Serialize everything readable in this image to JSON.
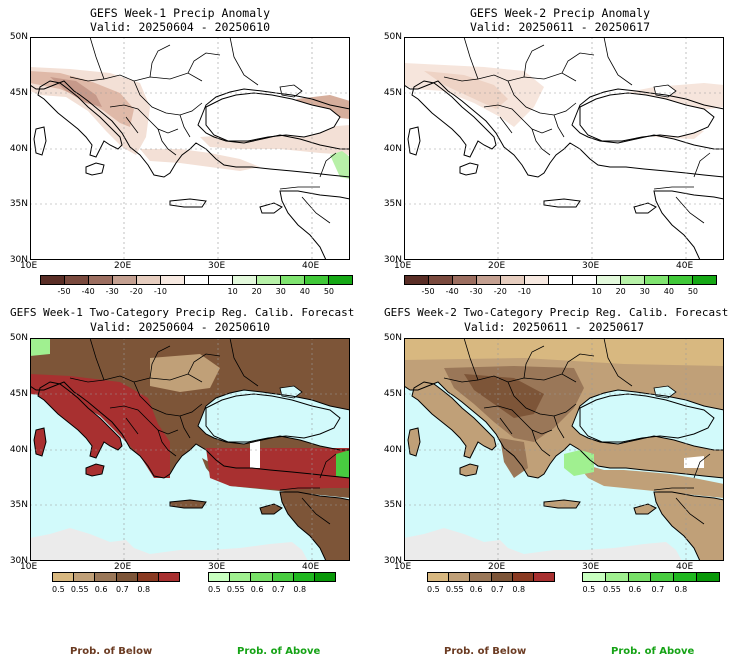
{
  "panels": [
    {
      "title": "GEFS Week-1 Precip Anomaly",
      "valid": "Valid: 20250604 - 20250610",
      "kind": "anomaly"
    },
    {
      "title": "GEFS Week-2 Precip Anomaly",
      "valid": "Valid: 20250611 - 20250617",
      "kind": "anomaly"
    },
    {
      "title": "GEFS Week-1 Two-Category Precip Reg. Calib. Forecast",
      "valid": "Valid: 20250604 - 20250610",
      "kind": "probability"
    },
    {
      "title": "GEFS Week-2 Two-Category Precip Reg. Calib. Forecast",
      "valid": "Valid: 20250611 - 20250617",
      "kind": "probability"
    }
  ],
  "axes": {
    "lat_labels": [
      "50N",
      "45N",
      "40N",
      "35N",
      "30N"
    ],
    "lon_labels": [
      "10E",
      "20E",
      "30E",
      "40E"
    ]
  },
  "anomaly_scale": {
    "ticks": [
      "-50",
      "-40",
      "-30",
      "-20",
      "-10",
      "10",
      "20",
      "30",
      "40",
      "50"
    ],
    "colors": [
      "#5a2e26",
      "#7a4a3e",
      "#9c6e60",
      "#c4a091",
      "#e6cdbf",
      "#f7e9e1",
      "#ffffff",
      "#ffffff",
      "#e3f9dc",
      "#b7f1a8",
      "#80e470",
      "#40c838",
      "#15a815"
    ]
  },
  "prob_scale_below": {
    "ticks": [
      "0.5",
      "0.55",
      "0.6",
      "0.7",
      "0.8"
    ],
    "colors": [
      "#d8b880",
      "#c0a078",
      "#9a7758",
      "#7d5538",
      "#8a3a22",
      "#a83030"
    ]
  },
  "prob_scale_above": {
    "ticks": [
      "0.5",
      "0.55",
      "0.6",
      "0.7",
      "0.8"
    ],
    "colors": [
      "#c8ffc0",
      "#a0f090",
      "#78e068",
      "#48cc40",
      "#20b820",
      "#089808"
    ]
  },
  "footer": {
    "below_label": "Prob. of Below",
    "above_label": "Prob. of Above"
  },
  "colors": {
    "sea": "#d2fafb",
    "africa_nodata": "#ebebeb",
    "coast": "#000000"
  }
}
